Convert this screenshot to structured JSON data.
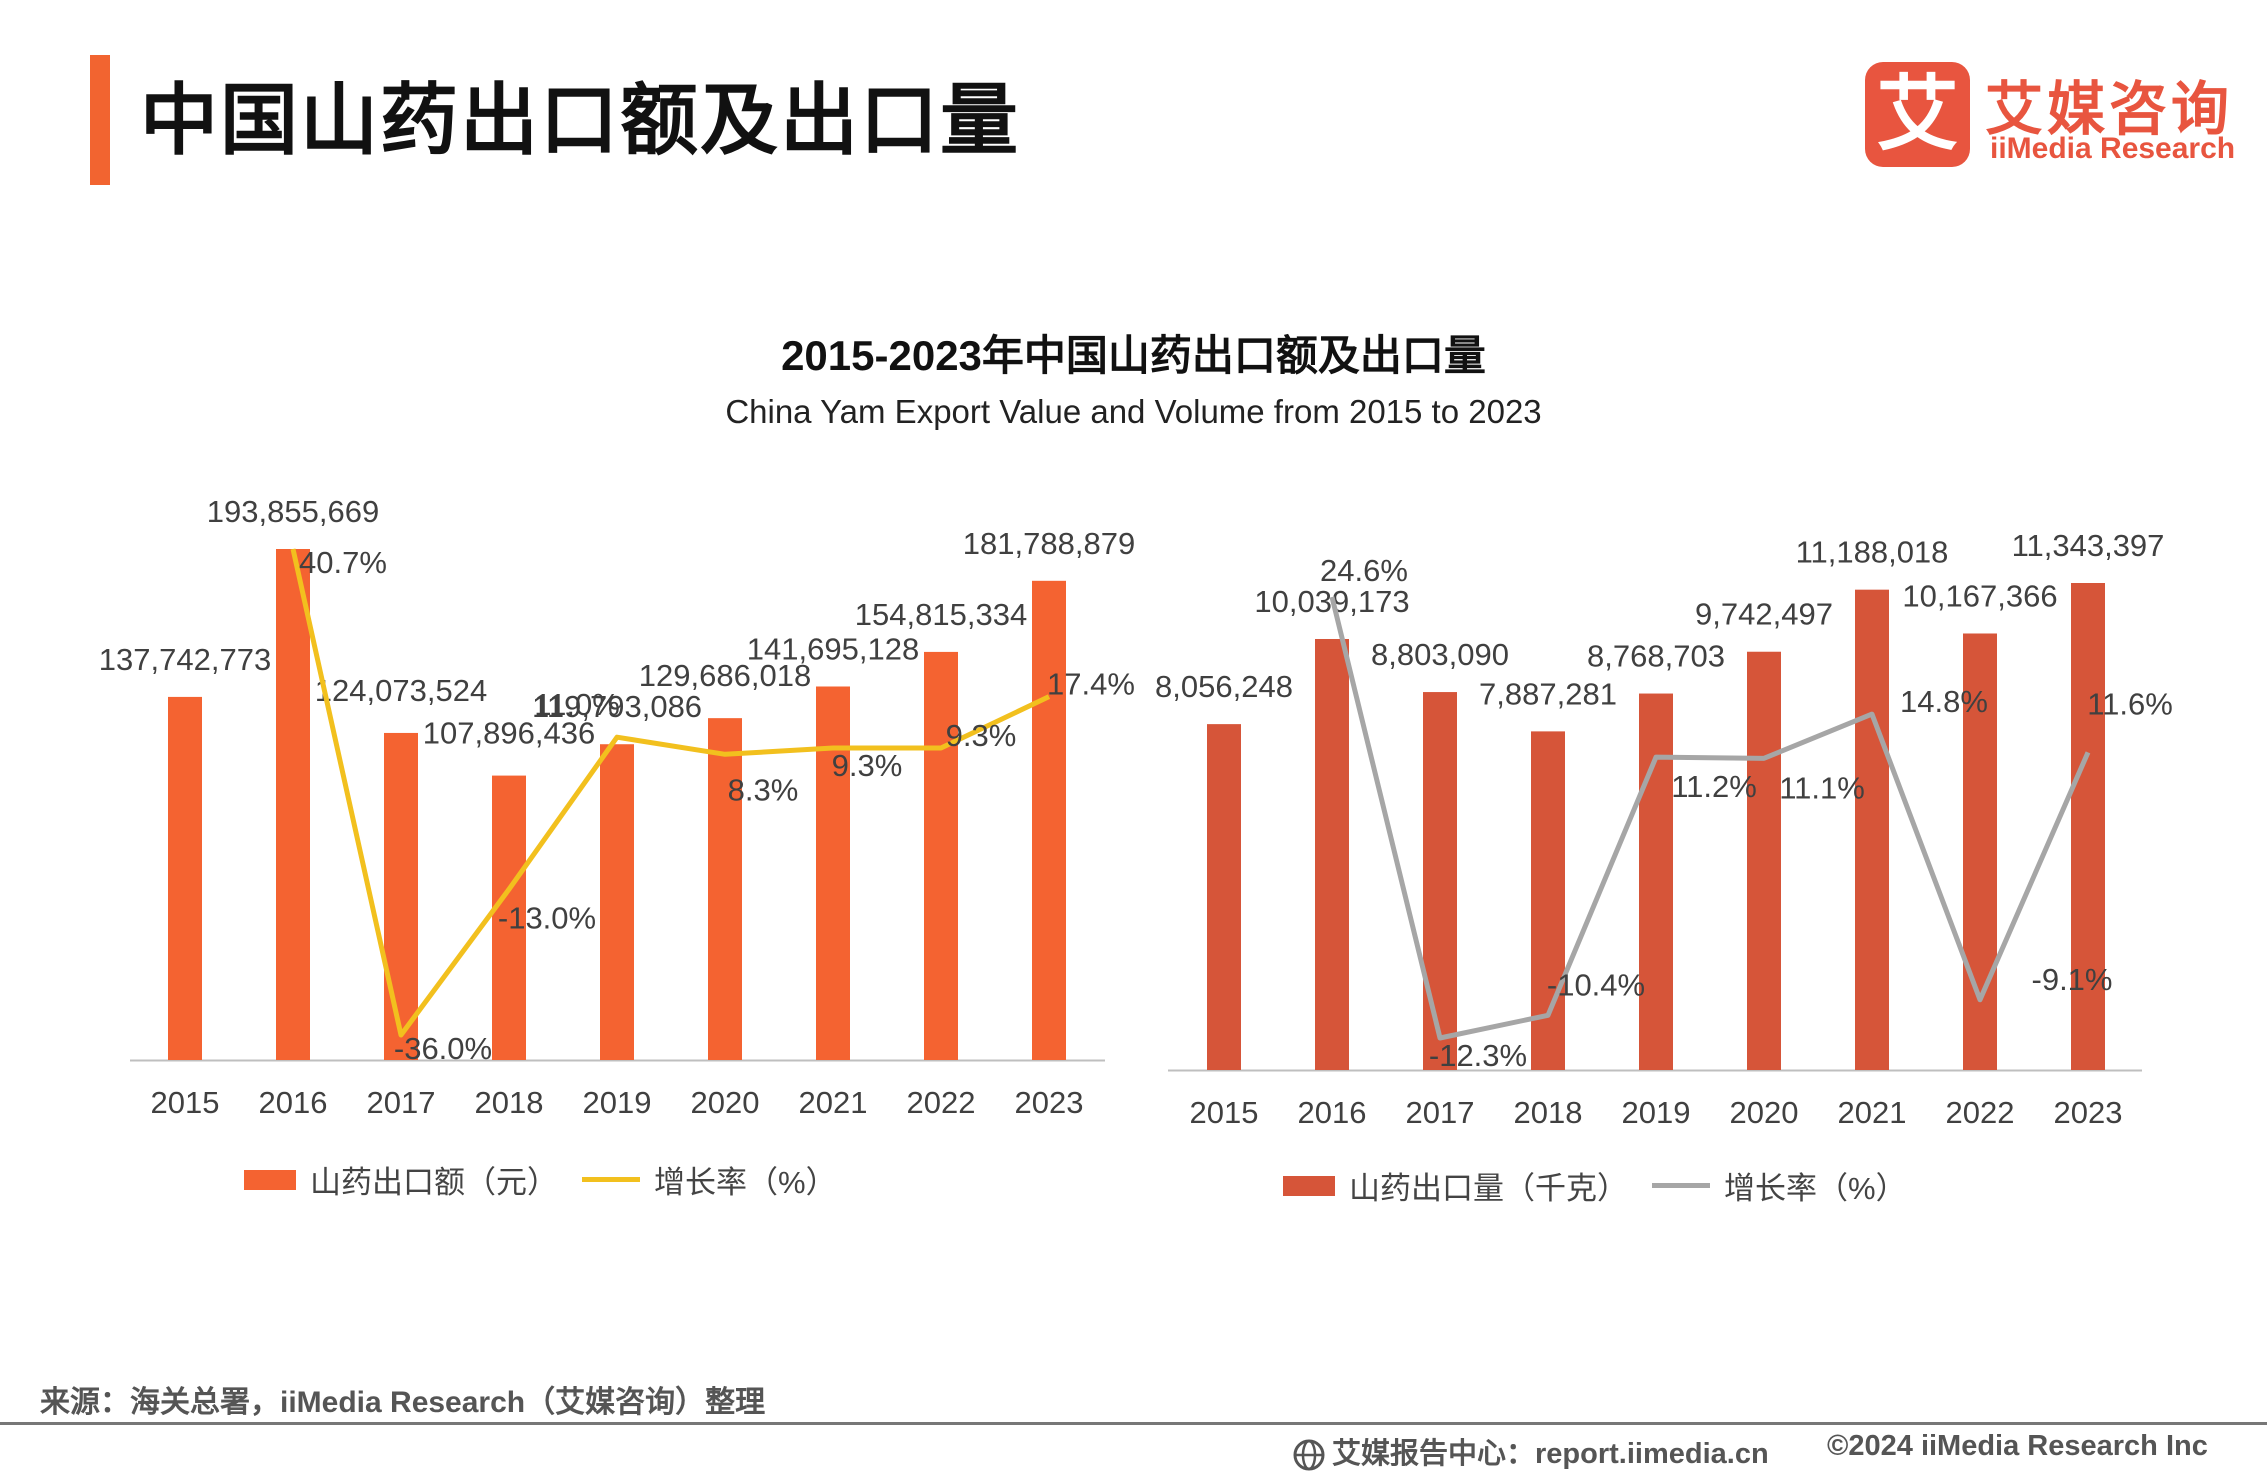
{
  "page": {
    "title": "中国山药出口额及出口量",
    "logo_mark": "艾",
    "logo_cn": "艾媒咨询",
    "logo_en": "iiMedia Research",
    "source": "来源：海关总署，iiMedia Research（艾媒咨询）整理",
    "footer_center": "艾媒报告中心：report.iimedia.cn",
    "footer_right": "©2024  iiMedia Research  Inc"
  },
  "colors": {
    "accent": "#f26430",
    "value_bar": "#f46331",
    "value_line": "#f2c01e",
    "volume_bar": "#d65539",
    "volume_line": "#a6a6a6",
    "axis": "#bfbfbf",
    "label": "#404040"
  },
  "chart_title": "2015-2023年中国山药出口额及出口量",
  "chart_subtitle": "China Yam Export Value and Volume from 2015 to 2023",
  "chart_data": [
    {
      "type": "bar",
      "categories": [
        "2015",
        "2016",
        "2017",
        "2018",
        "2019",
        "2020",
        "2021",
        "2022",
        "2023"
      ],
      "series": [
        {
          "name": "山药出口额（元）",
          "values": [
            137742773,
            193855669,
            124073524,
            107896436,
            119793086,
            129686018,
            141695128,
            154815334,
            181788879
          ]
        },
        {
          "name": "增长率（%）",
          "type": "line",
          "values": [
            null,
            40.7,
            -36.0,
            -13.0,
            11.0,
            8.3,
            9.3,
            9.3,
            17.4
          ]
        }
      ],
      "value_labels": [
        "137,742,773",
        "193,855,669",
        "124,073,524",
        "107,896,436",
        "119,793,086",
        "129,686,018",
        "141,695,128",
        "154,815,334",
        "181,788,879"
      ],
      "rate_labels": [
        "",
        "40.7%",
        "-36.0%",
        "-13.0%",
        "11.0%",
        "8.3%",
        "9.3%",
        "9.3%",
        "17.4%"
      ],
      "legend": {
        "bar": "山药出口额（元）",
        "line": "增长率（%）"
      }
    },
    {
      "type": "bar",
      "categories": [
        "2015",
        "2016",
        "2017",
        "2018",
        "2019",
        "2020",
        "2021",
        "2022",
        "2023"
      ],
      "series": [
        {
          "name": "山药出口量（千克）",
          "values": [
            8056248,
            10039173,
            8803090,
            7887281,
            8768703,
            9742497,
            11188018,
            10167366,
            11343397
          ]
        },
        {
          "name": "增长率（%）",
          "type": "line",
          "values": [
            null,
            24.6,
            -12.3,
            -10.4,
            11.2,
            11.1,
            14.8,
            -9.1,
            11.6
          ]
        }
      ],
      "value_labels": [
        "8,056,248",
        "10,039,173",
        "8,803,090",
        "7,887,281",
        "8,768,703",
        "9,742,497",
        "11,188,018",
        "10,167,366",
        "11,343,397"
      ],
      "rate_labels": [
        "",
        "24.6%",
        "-12.3%",
        "-10.4%",
        "11.2%",
        "11.1%",
        "14.8%",
        "-9.1%",
        "11.6%"
      ],
      "legend": {
        "bar": "山药出口量（千克）",
        "line": "增长率（%）"
      }
    }
  ]
}
